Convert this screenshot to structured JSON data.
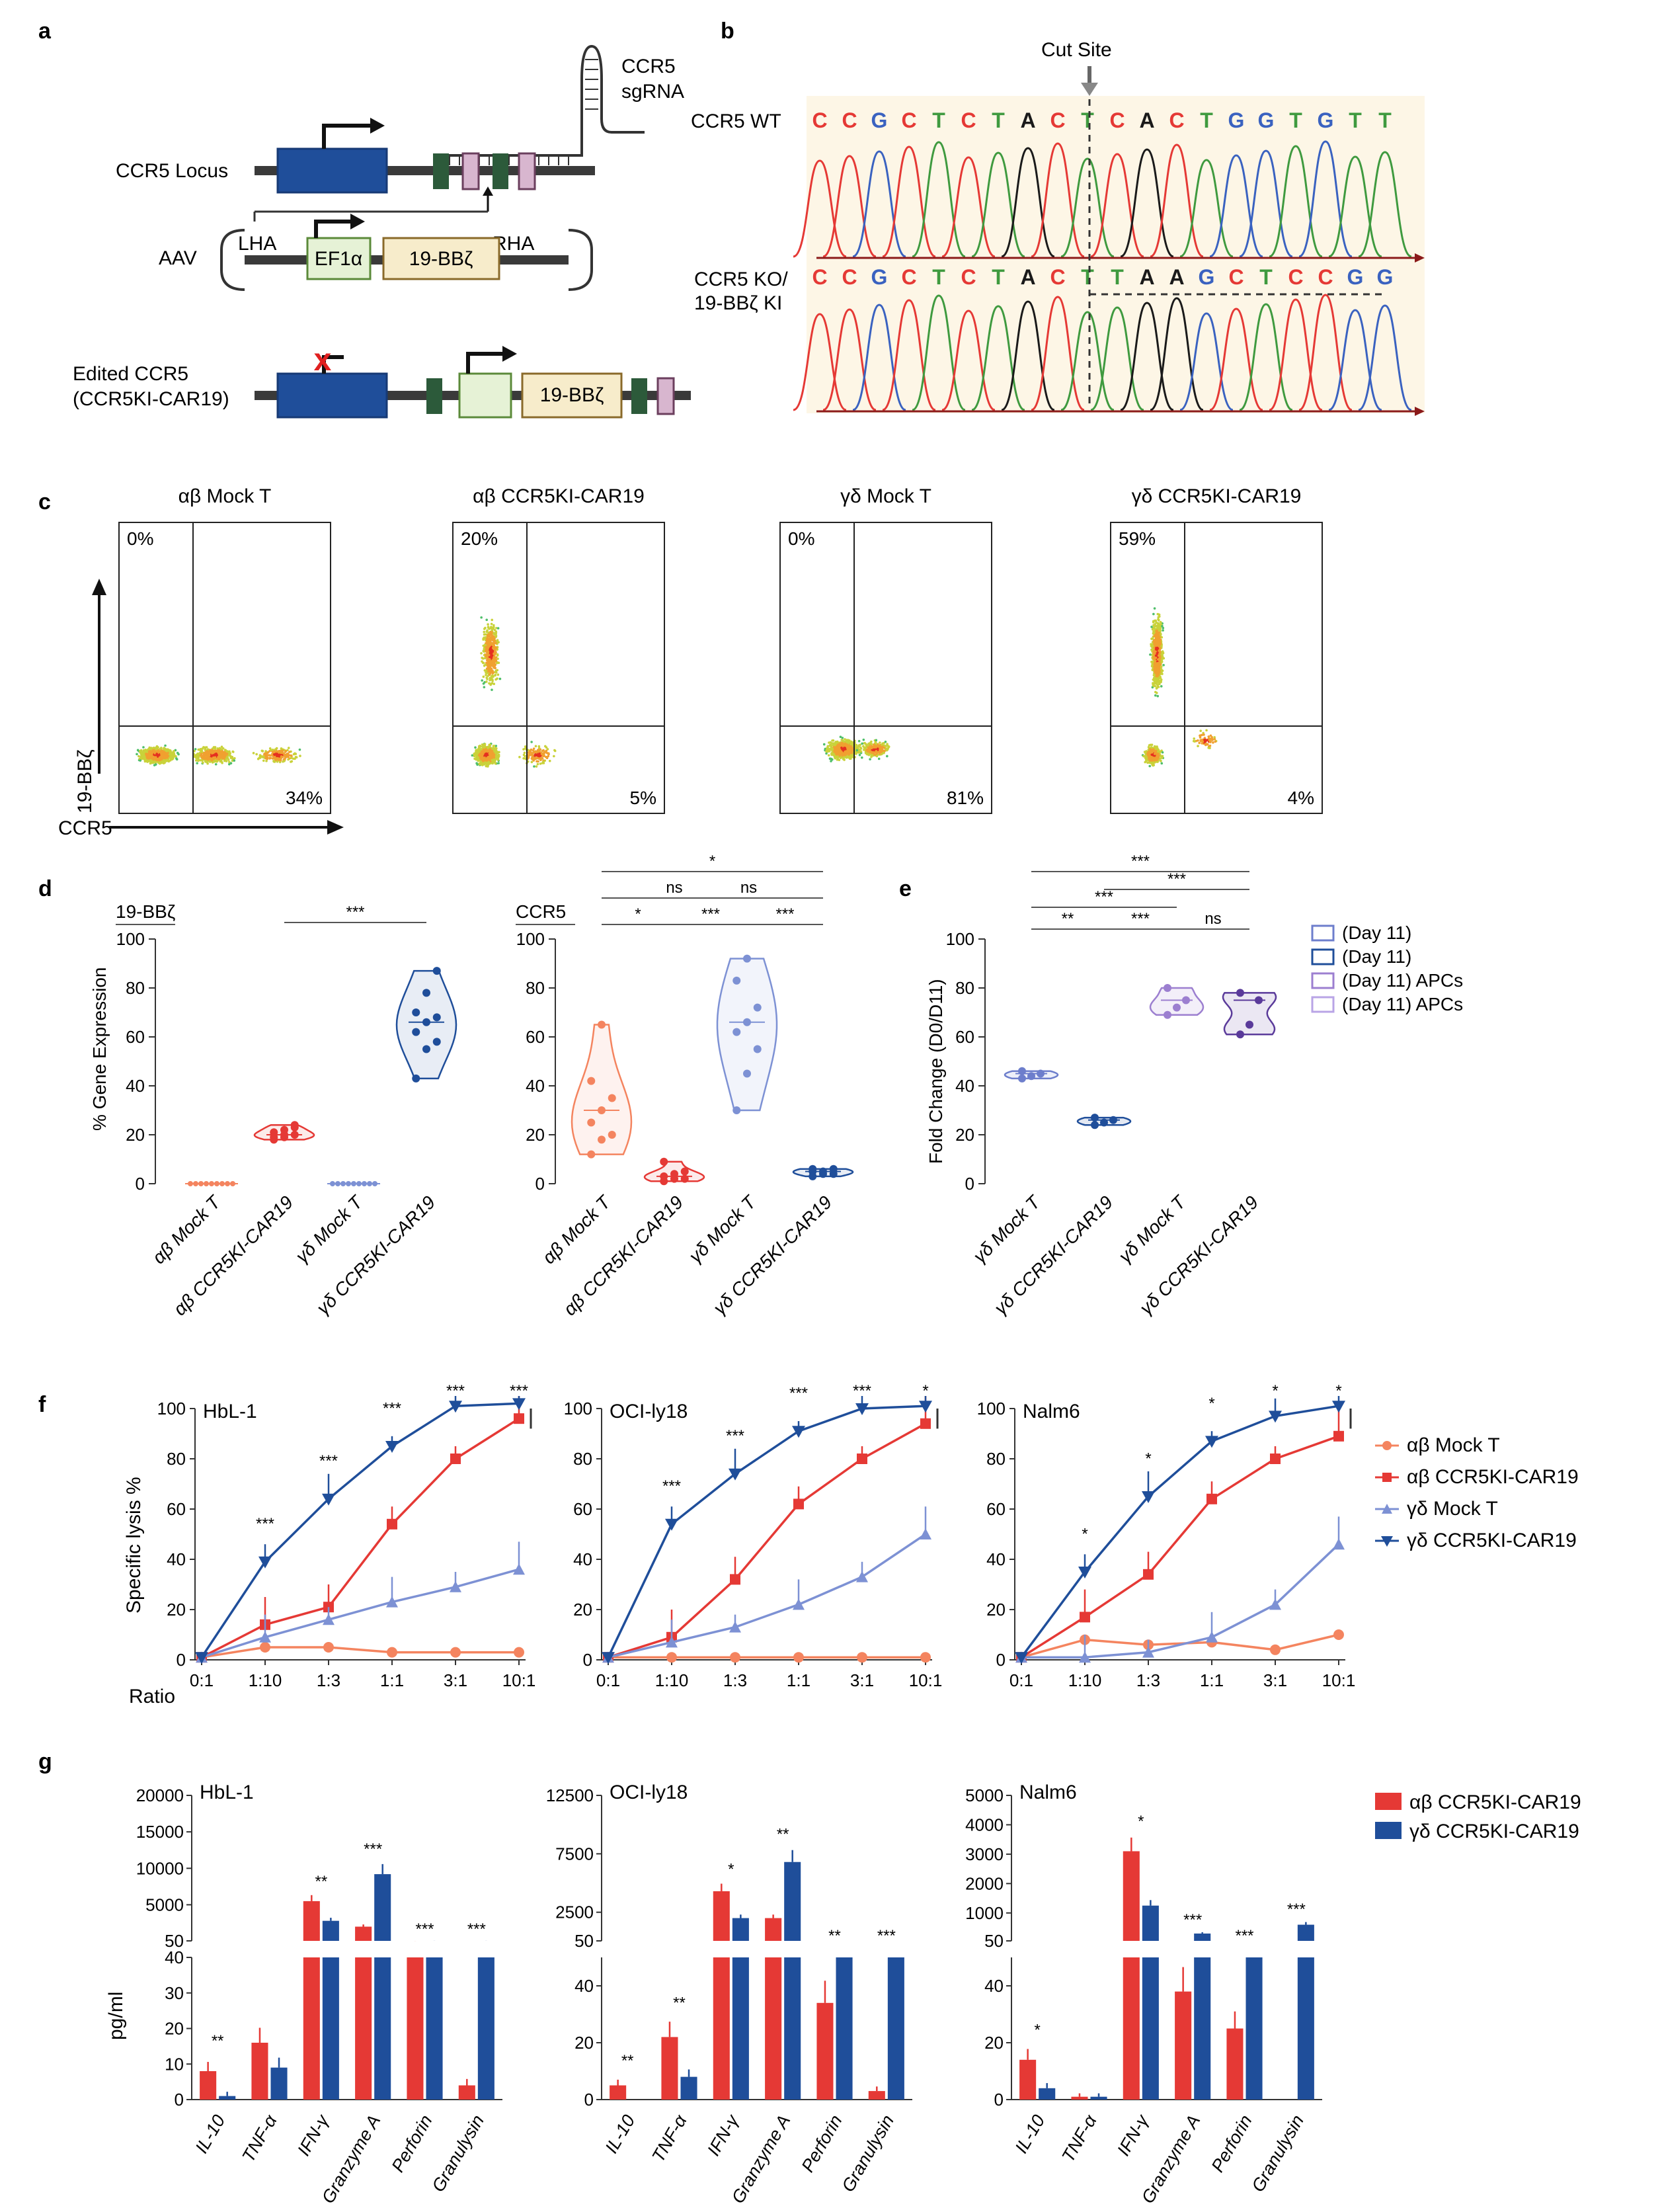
{
  "panels": [
    "a",
    "b",
    "c",
    "d",
    "e",
    "f",
    "g"
  ],
  "panel_a": {
    "locus_label": "CCR5 Locus",
    "sgrna_label": "CCR5 sgRNA",
    "sgrna_line1": "CCR5",
    "sgrna_line2": "sgRNA",
    "aav_label": "AAV",
    "lha": "LHA",
    "rha": "RHA",
    "promoter": "EF1α",
    "cassette": "19-BBζ",
    "edited_line1": "Edited CCR5",
    "edited_line2": "(CCR5KI-CAR19)",
    "edited_cassette": "19-BBζ"
  },
  "panel_b": {
    "cut_site": "Cut Site",
    "wt_label": "CCR5 WT",
    "ko_line1": "CCR5 KO/",
    "ko_line2": "19-BBζ KI",
    "wt_seq": [
      "C",
      "C",
      "G",
      "C",
      "T",
      "C",
      "T",
      "A",
      "C",
      "T",
      "C",
      "A",
      "C",
      "T",
      "G",
      "G",
      "T",
      "G",
      "T",
      "T"
    ],
    "ko_seq": [
      "C",
      "C",
      "G",
      "C",
      "T",
      "C",
      "T",
      "A",
      "C",
      "T",
      "T",
      "A",
      "A",
      "G",
      "C",
      "T",
      "C",
      "C",
      "G",
      "G"
    ],
    "base_colors": {
      "A": "#1a1a1a",
      "C": "#e53935",
      "G": "#3a62c0",
      "T": "#3f9a3f"
    }
  },
  "panel_c": {
    "x_label": "CCR5",
    "y_label": "19-BBζ",
    "plots": [
      {
        "title": "αβ Mock T",
        "ul": "0%",
        "lr": "34%"
      },
      {
        "title": "αβ CCR5KI-CAR19",
        "ul": "20%",
        "lr": "5%"
      },
      {
        "title": "γδ Mock T",
        "ul": "0%",
        "lr": "81%"
      },
      {
        "title": "γδ CCR5KI-CAR19",
        "ul": "59%",
        "lr": "4%"
      }
    ]
  },
  "panel_d": {
    "y_label": "% Gene Expression",
    "left_title": "19-BBζ",
    "right_title": "CCR5",
    "categories": [
      "αβ Mock T",
      "αβ CCR5KI-CAR19",
      "γδ Mock T",
      "γδ CCR5KI-CAR19"
    ],
    "yticks": [
      "0",
      "20",
      "40",
      "60",
      "80",
      "100"
    ],
    "sig_left": [
      "***"
    ],
    "sig_right": [
      "*",
      "ns",
      "ns",
      "*",
      "***",
      "***"
    ]
  },
  "panel_e": {
    "y_label": "Fold Change  (D0/D11)",
    "categories": [
      "γδ Mock T",
      "γδ CCR5KI-CAR19",
      "γδ Mock T",
      "γδ CCR5KI-CAR19"
    ],
    "yticks": [
      "0",
      "20",
      "40",
      "60",
      "80",
      "100"
    ],
    "legend": [
      "(Day 11)",
      "(Day 11)",
      "(Day 11) APCs",
      "(Day 11) APCs"
    ],
    "sig": [
      "***",
      "***",
      "***",
      "**",
      "***",
      "ns"
    ]
  },
  "panel_f": {
    "y_label": "Specific lysis %",
    "x_prefix": "Ratio",
    "x_ticks": [
      "0:1",
      "1:10",
      "1:3",
      "1:1",
      "3:1",
      "10:1"
    ],
    "y_ticks": [
      "0",
      "20",
      "40",
      "60",
      "80",
      "100"
    ],
    "legend": [
      "αβ Mock T",
      "αβ CCR5KI-CAR19",
      "γδ Mock T",
      "γδ CCR5KI-CAR19"
    ],
    "plots": [
      {
        "title": "HbL-1",
        "sig": [
          "***",
          "***",
          "***",
          "***",
          "***"
        ]
      },
      {
        "title": "OCI-ly18",
        "sig": [
          "***",
          "***",
          "***",
          "***",
          "*"
        ]
      },
      {
        "title": "Nalm6",
        "sig": [
          "*",
          "*",
          "*",
          "*",
          "*"
        ]
      }
    ]
  },
  "panel_g": {
    "y_label": "pg/ml",
    "categories": [
      "IL-10",
      "TNF-α",
      "IFN-γ",
      "Granzyme A",
      "Perforin",
      "Granulysin"
    ],
    "legend": [
      "αβ CCR5KI-CAR19",
      "γδ CCR5KI-CAR19"
    ],
    "plots": [
      {
        "title": "HbL-1",
        "upper_ticks": [
          "50",
          "5000",
          "10000",
          "15000",
          "20000"
        ],
        "lower_ticks": [
          "0",
          "10",
          "20",
          "30",
          "40"
        ],
        "sig": [
          "**",
          "",
          "**",
          "***",
          "***",
          "***"
        ]
      },
      {
        "title": "OCI-ly18",
        "upper_ticks": [
          "50",
          "2500",
          "7500",
          "12500"
        ],
        "lower_ticks": [
          "0",
          "20",
          "40"
        ],
        "sig": [
          "**",
          "**",
          "*",
          "**",
          "**",
          "***"
        ]
      },
      {
        "title": "Nalm6",
        "upper_ticks": [
          "50",
          "1000",
          "2000",
          "3000",
          "4000",
          "5000"
        ],
        "lower_ticks": [
          "0",
          "20",
          "40"
        ],
        "sig": [
          "*",
          "",
          "*",
          "***",
          "***",
          "***"
        ]
      }
    ]
  },
  "chart_data": [
    {
      "type": "violin",
      "title": "19-BBζ",
      "ylabel": "% Gene Expression",
      "ylim": [
        0,
        100
      ],
      "categories": [
        "αβ Mock T",
        "αβ CCR5KI-CAR19",
        "γδ Mock T",
        "γδ CCR5KI-CAR19"
      ],
      "values": [
        [
          0,
          0,
          0,
          0,
          0,
          0,
          0,
          0,
          0
        ],
        [
          18,
          19,
          20,
          21,
          22,
          23,
          19,
          20,
          24
        ],
        [
          0,
          0,
          0,
          0,
          0,
          0,
          0,
          0,
          0
        ],
        [
          43,
          55,
          58,
          62,
          66,
          68,
          70,
          78,
          87
        ]
      ]
    },
    {
      "type": "violin",
      "title": "CCR5",
      "ylabel": "% Gene Expression",
      "ylim": [
        0,
        100
      ],
      "categories": [
        "αβ Mock T",
        "αβ CCR5KI-CAR19",
        "γδ Mock T",
        "γδ CCR5KI-CAR19"
      ],
      "values": [
        [
          12,
          18,
          20,
          25,
          30,
          35,
          42,
          65
        ],
        [
          1,
          2,
          2,
          3,
          4,
          5,
          9
        ],
        [
          30,
          45,
          55,
          62,
          66,
          72,
          83,
          92
        ],
        [
          3,
          4,
          4,
          5,
          5,
          6,
          6
        ]
      ]
    },
    {
      "type": "violin",
      "title": "Fold Change (D0/D11)",
      "ylim": [
        0,
        100
      ],
      "categories": [
        "γδ Mock T",
        "γδ CCR5KI-CAR19",
        "γδ Mock T",
        "γδ CCR5KI-CAR19"
      ],
      "values": [
        [
          43,
          44,
          45,
          46
        ],
        [
          24,
          25,
          26,
          27
        ],
        [
          69,
          72,
          75,
          80
        ],
        [
          61,
          65,
          75,
          78
        ]
      ]
    },
    {
      "type": "line",
      "title": "HbL-1",
      "x": [
        "0:1",
        "1:10",
        "1:3",
        "1:1",
        "3:1",
        "10:1"
      ],
      "ylabel": "Specific lysis %",
      "ylim": [
        0,
        100
      ],
      "series": [
        {
          "name": "αβ Mock T",
          "values": [
            1,
            5,
            5,
            3,
            3,
            3
          ]
        },
        {
          "name": "αβ CCR5KI-CAR19",
          "values": [
            1,
            14,
            21,
            54,
            80,
            96
          ]
        },
        {
          "name": "γδ Mock T",
          "values": [
            1,
            9,
            16,
            23,
            29,
            36
          ]
        },
        {
          "name": "γδ CCR5KI-CAR19",
          "values": [
            1,
            39,
            64,
            85,
            101,
            102
          ]
        }
      ]
    },
    {
      "type": "line",
      "title": "OCI-ly18",
      "x": [
        "0:1",
        "1:10",
        "1:3",
        "1:1",
        "3:1",
        "10:1"
      ],
      "ylabel": "Specific lysis %",
      "ylim": [
        0,
        100
      ],
      "series": [
        {
          "name": "αβ Mock T",
          "values": [
            1,
            1,
            1,
            1,
            1,
            1
          ]
        },
        {
          "name": "αβ CCR5KI-CAR19",
          "values": [
            1,
            9,
            32,
            62,
            80,
            94
          ]
        },
        {
          "name": "γδ Mock T",
          "values": [
            1,
            7,
            13,
            22,
            33,
            50
          ]
        },
        {
          "name": "γδ CCR5KI-CAR19",
          "values": [
            1,
            54,
            74,
            91,
            100,
            101
          ]
        }
      ]
    },
    {
      "type": "line",
      "title": "Nalm6",
      "x": [
        "0:1",
        "1:10",
        "1:3",
        "1:1",
        "3:1",
        "10:1"
      ],
      "ylabel": "Specific lysis %",
      "ylim": [
        0,
        100
      ],
      "series": [
        {
          "name": "αβ Mock T",
          "values": [
            1,
            8,
            6,
            7,
            4,
            10
          ]
        },
        {
          "name": "αβ CCR5KI-CAR19",
          "values": [
            1,
            17,
            34,
            64,
            80,
            89
          ]
        },
        {
          "name": "γδ Mock T",
          "values": [
            1,
            1,
            3,
            9,
            22,
            46
          ]
        },
        {
          "name": "γδ CCR5KI-CAR19",
          "values": [
            1,
            35,
            65,
            87,
            97,
            101
          ]
        }
      ]
    },
    {
      "type": "bar",
      "title": "HbL-1",
      "ylabel": "pg/ml",
      "categories": [
        "IL-10",
        "TNF-α",
        "IFN-γ",
        "Granzyme A",
        "Perforin",
        "Granulysin"
      ],
      "series": [
        {
          "name": "αβ CCR5KI-CAR19",
          "values": [
            8,
            16,
            5500,
            2000,
            42,
            4
          ]
        },
        {
          "name": "γδ CCR5KI-CAR19",
          "values": [
            1,
            9,
            2800,
            9200,
            50,
            50
          ]
        }
      ]
    },
    {
      "type": "bar",
      "title": "OCI-ly18",
      "ylabel": "pg/ml",
      "categories": [
        "IL-10",
        "TNF-α",
        "IFN-γ",
        "Granzyme A",
        "Perforin",
        "Granulysin"
      ],
      "series": [
        {
          "name": "αβ CCR5KI-CAR19",
          "values": [
            5,
            22,
            4300,
            2000,
            34,
            3
          ]
        },
        {
          "name": "γδ CCR5KI-CAR19",
          "values": [
            0,
            8,
            2000,
            6800,
            50,
            50
          ]
        }
      ]
    },
    {
      "type": "bar",
      "title": "Nalm6",
      "ylabel": "pg/ml",
      "categories": [
        "IL-10",
        "TNF-α",
        "IFN-γ",
        "Granzyme A",
        "Perforin",
        "Granulysin"
      ],
      "series": [
        {
          "name": "αβ CCR5KI-CAR19",
          "values": [
            14,
            1,
            3100,
            38,
            25,
            0
          ]
        },
        {
          "name": "γδ CCR5KI-CAR19",
          "values": [
            4,
            1,
            1250,
            300,
            50,
            600
          ]
        }
      ]
    }
  ]
}
